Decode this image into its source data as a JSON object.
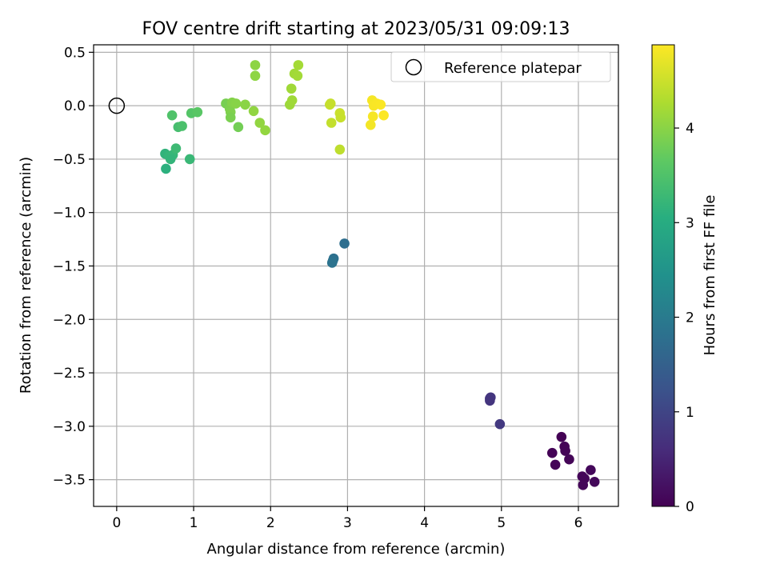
{
  "chart_data": {
    "type": "scatter",
    "title": "FOV centre drift starting at 2023/05/31 09:09:13",
    "xlabel": "Angular distance from reference (arcmin)",
    "ylabel": "Rotation from reference (arcmin)",
    "xlim": [
      -0.3,
      6.52
    ],
    "ylim": [
      -3.75,
      0.57
    ],
    "x_ticks": [
      0,
      1,
      2,
      3,
      4,
      5,
      6
    ],
    "y_ticks": [
      0.5,
      0.0,
      -0.5,
      -1.0,
      -1.5,
      -2.0,
      -2.5,
      -3.0,
      -3.5
    ],
    "x_tick_labels": [
      "0",
      "1",
      "2",
      "3",
      "4",
      "5",
      "6"
    ],
    "y_tick_labels": [
      "0.5",
      "0.0",
      "−0.5",
      "−1.0",
      "−1.5",
      "−2.0",
      "−2.5",
      "−3.0",
      "−3.5"
    ],
    "grid": true,
    "legend": {
      "placement": "top-right",
      "entries": [
        {
          "label": "Reference platepar",
          "marker": "open-circle",
          "color": "#000000"
        }
      ]
    },
    "reference_point": {
      "x": 0.0,
      "y": 0.0
    },
    "colorbar": {
      "label": "Hours from first FF file",
      "colormap": "viridis",
      "range": [
        0,
        4.88
      ],
      "ticks": [
        0,
        1,
        2,
        3,
        4
      ],
      "tick_labels": [
        "0",
        "1",
        "2",
        "3",
        "4"
      ]
    },
    "points": [
      {
        "x": 5.78,
        "y": -3.1,
        "t": 0.02
      },
      {
        "x": 5.82,
        "y": -3.19,
        "t": 0.03
      },
      {
        "x": 5.83,
        "y": -3.23,
        "t": 0.04
      },
      {
        "x": 5.88,
        "y": -3.31,
        "t": 0.05
      },
      {
        "x": 5.66,
        "y": -3.25,
        "t": 0.03
      },
      {
        "x": 5.7,
        "y": -3.36,
        "t": 0.04
      },
      {
        "x": 6.05,
        "y": -3.47,
        "t": 0.06
      },
      {
        "x": 6.08,
        "y": -3.49,
        "t": 0.07
      },
      {
        "x": 6.06,
        "y": -3.55,
        "t": 0.08
      },
      {
        "x": 6.16,
        "y": -3.41,
        "t": 0.09
      },
      {
        "x": 6.21,
        "y": -3.52,
        "t": 0.1
      },
      {
        "x": 4.85,
        "y": -2.74,
        "t": 0.75
      },
      {
        "x": 4.86,
        "y": -2.73,
        "t": 0.76
      },
      {
        "x": 4.85,
        "y": -2.76,
        "t": 0.74
      },
      {
        "x": 4.98,
        "y": -2.98,
        "t": 0.8
      },
      {
        "x": 2.96,
        "y": -1.29,
        "t": 1.75
      },
      {
        "x": 2.82,
        "y": -1.43,
        "t": 1.8
      },
      {
        "x": 2.81,
        "y": -1.45,
        "t": 1.82
      },
      {
        "x": 2.8,
        "y": -1.47,
        "t": 1.84
      },
      {
        "x": 0.63,
        "y": -0.45,
        "t": 3.15
      },
      {
        "x": 0.68,
        "y": -0.47,
        "t": 3.2
      },
      {
        "x": 0.73,
        "y": -0.46,
        "t": 3.22
      },
      {
        "x": 0.64,
        "y": -0.59,
        "t": 3.1
      },
      {
        "x": 0.7,
        "y": -0.5,
        "t": 3.18
      },
      {
        "x": 0.77,
        "y": -0.4,
        "t": 3.3
      },
      {
        "x": 0.72,
        "y": -0.09,
        "t": 3.5
      },
      {
        "x": 0.8,
        "y": -0.2,
        "t": 3.4
      },
      {
        "x": 0.85,
        "y": -0.19,
        "t": 3.45
      },
      {
        "x": 0.95,
        "y": -0.5,
        "t": 3.25
      },
      {
        "x": 0.97,
        "y": -0.07,
        "t": 3.55
      },
      {
        "x": 1.05,
        "y": -0.06,
        "t": 3.6
      },
      {
        "x": 1.42,
        "y": 0.02,
        "t": 3.85
      },
      {
        "x": 1.47,
        "y": -0.03,
        "t": 3.9
      },
      {
        "x": 1.5,
        "y": 0.03,
        "t": 3.95
      },
      {
        "x": 1.48,
        "y": -0.06,
        "t": 3.92
      },
      {
        "x": 1.48,
        "y": -0.11,
        "t": 3.88
      },
      {
        "x": 1.55,
        "y": 0.02,
        "t": 3.98
      },
      {
        "x": 1.58,
        "y": -0.2,
        "t": 3.82
      },
      {
        "x": 1.67,
        "y": 0.01,
        "t": 4.0
      },
      {
        "x": 1.8,
        "y": 0.38,
        "t": 4.02
      },
      {
        "x": 1.8,
        "y": 0.28,
        "t": 4.03
      },
      {
        "x": 1.78,
        "y": -0.05,
        "t": 4.05
      },
      {
        "x": 1.86,
        "y": -0.16,
        "t": 4.06
      },
      {
        "x": 1.93,
        "y": -0.23,
        "t": 4.07
      },
      {
        "x": 2.25,
        "y": 0.01,
        "t": 4.15
      },
      {
        "x": 2.28,
        "y": 0.05,
        "t": 4.16
      },
      {
        "x": 2.27,
        "y": 0.16,
        "t": 4.17
      },
      {
        "x": 2.31,
        "y": 0.3,
        "t": 4.18
      },
      {
        "x": 2.35,
        "y": 0.28,
        "t": 4.19
      },
      {
        "x": 2.36,
        "y": 0.38,
        "t": 4.2
      },
      {
        "x": 2.77,
        "y": 0.01,
        "t": 4.45
      },
      {
        "x": 2.78,
        "y": 0.02,
        "t": 4.46
      },
      {
        "x": 2.79,
        "y": -0.16,
        "t": 4.44
      },
      {
        "x": 2.9,
        "y": -0.07,
        "t": 4.48
      },
      {
        "x": 2.91,
        "y": -0.11,
        "t": 4.47
      },
      {
        "x": 2.9,
        "y": -0.41,
        "t": 4.4
      },
      {
        "x": 3.3,
        "y": -0.18,
        "t": 4.8
      },
      {
        "x": 3.32,
        "y": 0.05,
        "t": 4.82
      },
      {
        "x": 3.34,
        "y": 0.0,
        "t": 4.84
      },
      {
        "x": 3.33,
        "y": -0.1,
        "t": 4.83
      },
      {
        "x": 3.38,
        "y": 0.02,
        "t": 4.85
      },
      {
        "x": 3.43,
        "y": 0.01,
        "t": 4.86
      },
      {
        "x": 3.47,
        "y": -0.09,
        "t": 4.87
      }
    ]
  }
}
